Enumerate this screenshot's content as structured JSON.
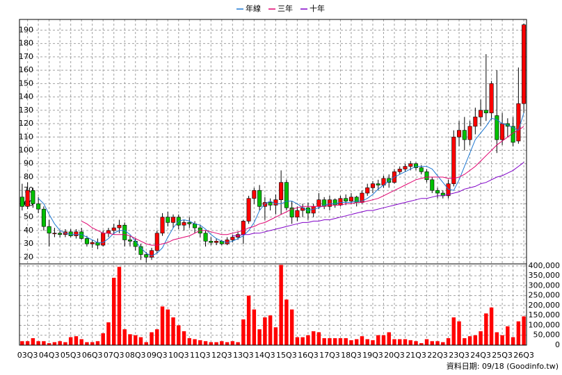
{
  "chart_data": {
    "type": "candlestick",
    "legend": "top",
    "grid": true,
    "source": "資料日期: 09/18 (Goodinfo.tw)",
    "up_color": "#ff0000",
    "down_color": "#00c000",
    "categories": [
      null,
      "03Q3",
      null,
      null,
      null,
      "04Q3",
      null,
      null,
      null,
      "05Q3",
      null,
      null,
      null,
      "06Q3",
      null,
      null,
      null,
      "07Q3",
      null,
      null,
      null,
      "08Q3",
      null,
      null,
      null,
      "09Q3",
      null,
      null,
      null,
      "10Q3",
      null,
      null,
      null,
      "11Q3",
      null,
      null,
      null,
      "12Q3",
      null,
      null,
      null,
      "13Q3",
      null,
      null,
      null,
      "14Q3",
      null,
      null,
      null,
      "15Q3",
      null,
      null,
      null,
      "16Q3",
      null,
      null,
      null,
      "17Q3",
      null,
      null,
      null,
      "18Q3",
      null,
      null,
      null,
      "19Q3",
      null,
      null,
      null,
      "20Q3",
      null,
      null,
      null,
      "21Q3",
      null,
      null,
      null,
      "22Q3",
      null,
      null,
      null,
      "23Q3",
      null,
      null,
      null,
      "24Q3",
      null,
      null,
      null,
      "25Q3",
      null,
      null,
      null,
      "26Q3"
    ],
    "open": [
      65,
      58,
      70,
      60,
      56,
      43,
      38,
      38,
      37,
      39,
      36,
      39,
      34,
      30,
      31,
      29,
      38,
      40,
      42,
      44,
      33,
      32,
      28,
      22,
      20,
      25,
      38,
      50,
      46,
      50,
      44,
      46,
      45,
      42,
      38,
      32,
      31,
      32,
      30,
      33,
      35,
      37,
      47,
      64,
      70,
      58,
      61,
      59,
      63,
      76,
      57,
      50,
      55,
      57,
      53,
      58,
      63,
      58,
      63,
      59,
      64,
      62,
      65,
      61,
      68,
      72,
      75,
      74,
      79,
      76,
      84,
      86,
      88,
      90,
      87,
      84,
      78,
      70,
      68,
      66,
      75,
      110,
      115,
      108,
      118,
      125,
      130,
      128,
      126,
      108,
      120,
      118,
      107,
      135
    ],
    "high": [
      75,
      76,
      72,
      65,
      58,
      48,
      42,
      40,
      41,
      41,
      41,
      42,
      36,
      33,
      34,
      40,
      42,
      45,
      48,
      46,
      36,
      34,
      30,
      24,
      27,
      40,
      53,
      54,
      52,
      52,
      48,
      50,
      47,
      44,
      40,
      35,
      34,
      33,
      35,
      37,
      39,
      48,
      66,
      72,
      74,
      65,
      64,
      67,
      85,
      78,
      62,
      58,
      60,
      61,
      60,
      68,
      65,
      66,
      64,
      66,
      67,
      68,
      66,
      70,
      75,
      77,
      78,
      81,
      82,
      86,
      88,
      90,
      92,
      91,
      89,
      86,
      80,
      72,
      70,
      78,
      115,
      122,
      125,
      122,
      132,
      138,
      172,
      152,
      160,
      128,
      124,
      125,
      162,
      195
    ],
    "low": [
      55,
      56,
      57,
      53,
      40,
      28,
      35,
      35,
      35,
      35,
      34,
      33,
      28,
      27,
      26,
      28,
      35,
      37,
      38,
      28,
      28,
      25,
      18,
      16,
      18,
      23,
      36,
      43,
      42,
      41,
      40,
      42,
      38,
      35,
      28,
      29,
      29,
      29,
      29,
      31,
      33,
      30,
      45,
      60,
      55,
      48,
      55,
      52,
      52,
      55,
      45,
      47,
      50,
      48,
      50,
      56,
      56,
      55,
      57,
      58,
      59,
      60,
      58,
      60,
      66,
      68,
      70,
      72,
      72,
      75,
      82,
      84,
      85,
      85,
      82,
      76,
      68,
      64,
      64,
      64,
      73,
      103,
      100,
      104,
      112,
      118,
      122,
      123,
      98,
      104,
      110,
      103,
      105,
      128
    ],
    "close": [
      58,
      70,
      60,
      56,
      43,
      38,
      38,
      37,
      39,
      36,
      39,
      34,
      30,
      31,
      29,
      38,
      40,
      42,
      44,
      33,
      32,
      28,
      22,
      20,
      25,
      38,
      50,
      46,
      50,
      44,
      46,
      45,
      42,
      38,
      32,
      31,
      32,
      30,
      33,
      35,
      37,
      47,
      64,
      70,
      58,
      61,
      59,
      63,
      76,
      57,
      50,
      55,
      57,
      53,
      58,
      63,
      58,
      63,
      59,
      64,
      62,
      65,
      61,
      68,
      72,
      75,
      74,
      79,
      76,
      84,
      86,
      88,
      90,
      87,
      84,
      78,
      70,
      68,
      66,
      75,
      110,
      115,
      108,
      118,
      125,
      130,
      128,
      150,
      108,
      120,
      118,
      106,
      135,
      194
    ],
    "series": [
      {
        "name": "年線",
        "color": "#1e78d2",
        "values": [
          null,
          null,
          null,
          64,
          60,
          52,
          45,
          40,
          38,
          37,
          37,
          37,
          35,
          33,
          31,
          31,
          34,
          38,
          40,
          40,
          37,
          32,
          27,
          23,
          21,
          23,
          27,
          35,
          42,
          47,
          48,
          47,
          45,
          44,
          41,
          37,
          34,
          32,
          31,
          32,
          34,
          36,
          40,
          46,
          55,
          60,
          62,
          60,
          60,
          62,
          62,
          60,
          57,
          55,
          56,
          57,
          59,
          60,
          60,
          61,
          61,
          61,
          62,
          62,
          64,
          67,
          71,
          74,
          77,
          80,
          82,
          84,
          86,
          88,
          88,
          88,
          86,
          81,
          76,
          71,
          70,
          78,
          88,
          98,
          108,
          113,
          118,
          124,
          123,
          120,
          119,
          117,
          115,
          128
        ]
      },
      {
        "name": "三年",
        "color": "#e0006e",
        "values": [
          null,
          null,
          null,
          null,
          null,
          null,
          null,
          null,
          null,
          null,
          null,
          47,
          45,
          42,
          40,
          38,
          38,
          37,
          37,
          37,
          36,
          34,
          32,
          30,
          29,
          29,
          30,
          31,
          33,
          34,
          35,
          36,
          38,
          40,
          40,
          39,
          38,
          37,
          37,
          38,
          39,
          40,
          42,
          43,
          45,
          46,
          48,
          50,
          52,
          54,
          56,
          57,
          58,
          58,
          58,
          58,
          58,
          59,
          59,
          59,
          60,
          60,
          61,
          61,
          62,
          63,
          64,
          66,
          68,
          70,
          72,
          74,
          76,
          78,
          79,
          80,
          80,
          80,
          80,
          79,
          79,
          80,
          82,
          85,
          88,
          92,
          96,
          100,
          104,
          107,
          110,
          113,
          115,
          118
        ]
      },
      {
        "name": "十年",
        "color": "#8000c8",
        "values": [
          null,
          null,
          null,
          null,
          null,
          null,
          null,
          null,
          null,
          null,
          null,
          null,
          null,
          null,
          null,
          null,
          null,
          null,
          null,
          null,
          null,
          null,
          null,
          null,
          null,
          null,
          null,
          null,
          null,
          null,
          null,
          null,
          null,
          null,
          null,
          null,
          null,
          null,
          null,
          36,
          36,
          37,
          37,
          38,
          38,
          39,
          40,
          41,
          42,
          43,
          44,
          45,
          46,
          46,
          47,
          47,
          48,
          48,
          49,
          50,
          51,
          52,
          53,
          54,
          55,
          55,
          56,
          57,
          58,
          59,
          60,
          61,
          62,
          63,
          64,
          64,
          65,
          66,
          66,
          67,
          68,
          69,
          71,
          72,
          73,
          75,
          76,
          78,
          80,
          81,
          83,
          85,
          88,
          91
        ]
      }
    ],
    "ylim": [
      15,
      198
    ],
    "yticks": [
      20,
      30,
      40,
      50,
      60,
      70,
      80,
      90,
      100,
      110,
      120,
      130,
      140,
      150,
      160,
      170,
      180,
      190
    ],
    "volume": {
      "color": "#ff0000",
      "ylim": [
        0,
        410000
      ],
      "yticks": [
        0,
        {
          "value": 50000,
          "label": "50,000"
        },
        {
          "value": 100000,
          "label": "100,000"
        },
        {
          "value": 150000,
          "label": "150,000"
        },
        {
          "value": 200000,
          "label": "200,000"
        },
        {
          "value": 250000,
          "label": "250,000"
        },
        {
          "value": 300000,
          "label": "300,000"
        },
        {
          "value": 350000,
          "label": "350,000"
        },
        {
          "value": 400000,
          "label": "400,000"
        }
      ],
      "values": [
        20000,
        20000,
        35000,
        20000,
        20000,
        10000,
        15000,
        20000,
        15000,
        40000,
        45000,
        30000,
        15000,
        15000,
        20000,
        60000,
        115000,
        340000,
        395000,
        80000,
        55000,
        50000,
        40000,
        15000,
        65000,
        80000,
        195000,
        180000,
        140000,
        100000,
        70000,
        35000,
        30000,
        25000,
        20000,
        15000,
        15000,
        20000,
        15000,
        20000,
        15000,
        130000,
        250000,
        180000,
        80000,
        140000,
        150000,
        90000,
        405000,
        230000,
        180000,
        40000,
        40000,
        50000,
        70000,
        65000,
        35000,
        35000,
        35000,
        35000,
        35000,
        25000,
        30000,
        45000,
        30000,
        25000,
        50000,
        50000,
        65000,
        30000,
        30000,
        30000,
        25000,
        20000,
        10000,
        30000,
        20000,
        20000,
        15000,
        35000,
        140000,
        120000,
        35000,
        45000,
        50000,
        70000,
        160000,
        190000,
        65000,
        50000,
        95000,
        40000,
        120000,
        145000
      ]
    }
  }
}
